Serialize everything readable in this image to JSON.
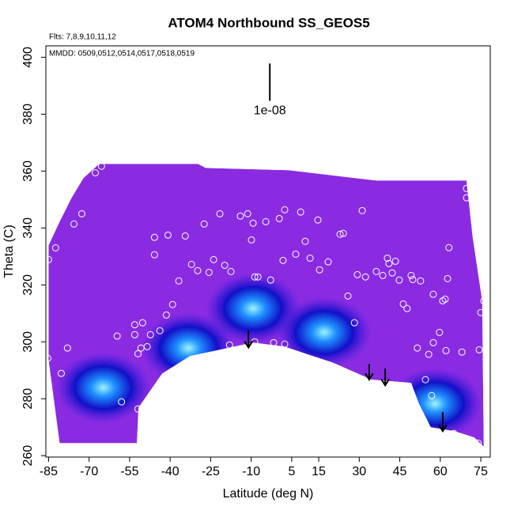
{
  "chart_data": {
    "type": "contour",
    "title": "ATOM4 Northbound SS_GEOS5",
    "annotations": [
      "Flts: 7,8,9,10,11,12",
      "MMDD: 0509,0512,0514,0517,0518,0519"
    ],
    "xlabel": "Latitude (deg N)",
    "ylabel": "Theta (C)",
    "xlim": [
      -86,
      78.5
    ],
    "ylim": [
      259.5,
      404
    ],
    "xticks": [
      -85,
      -70,
      -55,
      -40,
      -25,
      -10,
      5,
      15,
      30,
      45,
      60,
      75
    ],
    "yticks": [
      260,
      280,
      300,
      320,
      340,
      360,
      380,
      400
    ],
    "color": "#8a2be2",
    "field_region": {
      "lat": [
        -85,
        -80.9,
        -76.5,
        -72.1,
        -66.3,
        -29.7,
        -26.8,
        3.9,
        36.1,
        69.7,
        72,
        75.5,
        76.1,
        72.6,
        65.3,
        56.5,
        52.1,
        49.2,
        34.6,
        20,
        2.4,
        -9.3,
        -32.7,
        -42.9,
        -51.7,
        -52.3,
        -80.9,
        -85
      ],
      "theta": [
        333.9,
        342.2,
        350.6,
        357.5,
        362.5,
        362.5,
        361.1,
        360.3,
        356.7,
        356.7,
        336.7,
        314.4,
        263.1,
        266.4,
        268.6,
        270,
        278.3,
        285.6,
        286.7,
        292.8,
        298.3,
        299.7,
        295,
        288.9,
        276.9,
        264.4,
        264.4,
        293.6
      ]
    },
    "field_maxima": {
      "lat": [
        -64.8,
        -33.2,
        -9.3,
        17,
        58
      ],
      "theta": [
        283.9,
        297.8,
        311.7,
        303.3,
        278.3
      ]
    },
    "points": {
      "x": [
        -85.3,
        -85.3,
        -85,
        -82.4,
        -80.3,
        -78,
        -75.6,
        -72.7,
        -67.7,
        -65.4,
        -59.6,
        -58,
        -53.1,
        -53.1,
        -51.9,
        -50.8,
        -51.9,
        -50.2,
        -48.5,
        -45.8,
        -47.3,
        -45.8,
        -43.8,
        -41.4,
        -40.8,
        -39.1,
        -36.8,
        -34.4,
        -32.1,
        -29.8,
        -27.4,
        -25.6,
        -23.9,
        -21.6,
        -19.8,
        -18,
        -17.5,
        -14,
        -11.3,
        -9.3,
        -9.9,
        -8.7,
        -7.5,
        -8.7,
        -4.6,
        -2.8,
        -1.7,
        0.4,
        2.4,
        1.8,
        2.4,
        6.5,
        8.3,
        10,
        11.8,
        14.7,
        15.3,
        18.5,
        22.9,
        24.1,
        25.8,
        28.2,
        29.3,
        31.1,
        32.3,
        36.3,
        38.7,
        40.4,
        41,
        42.2,
        43.4,
        44.8,
        46.3,
        47.7,
        49.2,
        49.8,
        51.5,
        52.7,
        54.5,
        57.4,
        59.7,
        57.4,
        60.9,
        55.7,
        62.1,
        56.8,
        61.8,
        63.2,
        62.7,
        65,
        68,
        69.7,
        71.4,
        72,
        69.7,
        73.2,
        75,
        76.1,
        74.4,
        77.9,
        74
      ],
      "y": [
        294.2,
        279.7,
        328.9,
        333,
        288.9,
        297.8,
        341.4,
        345,
        359.4,
        361.7,
        302,
        278.9,
        306,
        302.5,
        295.8,
        297.8,
        276.4,
        306.7,
        298.3,
        336.7,
        302.5,
        330.6,
        303.9,
        309.4,
        337.5,
        313.1,
        321.4,
        337.2,
        327.2,
        325,
        341.4,
        324.4,
        328.9,
        345,
        326.9,
        298.9,
        324.7,
        344.2,
        345,
        341.7,
        335.8,
        322.8,
        322.8,
        300,
        342.2,
        321.7,
        299.7,
        343.3,
        346.4,
        328.6,
        299.2,
        330.8,
        345.6,
        335.3,
        329.4,
        342.8,
        325.3,
        328.1,
        337.8,
        338.1,
        316.1,
        306.7,
        323.6,
        346.1,
        322.8,
        324.7,
        323.3,
        329.4,
        327.5,
        324.2,
        328.3,
        321.7,
        313.3,
        311.7,
        323.3,
        321.9,
        297.8,
        321.4,
        286.7,
        316.7,
        303.3,
        299.7,
        314.4,
        295.6,
        296.9,
        281.1,
        315,
        333.1,
        322.2,
        267.8,
        296.4,
        350.6,
        353.3,
        355.6,
        353.9,
        348.9,
        310.3,
        314.4,
        297.2,
        297.8,
        264.4
      ]
    },
    "arrows": {
      "lat": [
        -11,
        33.7,
        39.6,
        60.9
      ],
      "theta_start": [
        304,
        292.2,
        290.6,
        275.3
      ],
      "theta_end": [
        298,
        286.7,
        284.7,
        268.6
      ]
    },
    "scale_bar": {
      "lat": -3.1,
      "theta_top": 397.8,
      "theta_bottom": 384.7,
      "label": "1e-08"
    }
  }
}
